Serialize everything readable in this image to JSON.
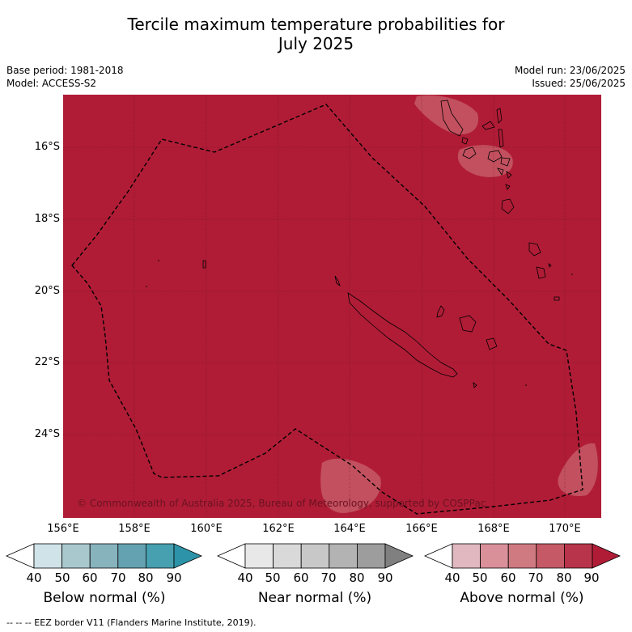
{
  "title_line1": "Tercile maximum temperature probabilities for",
  "title_line2": "July 2025",
  "base_period": "Base period: 1981-2018",
  "model": "Model: ACCESS-S2",
  "model_run": "Model run: 23/06/2025",
  "issued": "Issued: 25/06/2025",
  "latitudes": [
    "16°S",
    "18°S",
    "20°S",
    "22°S",
    "24°S"
  ],
  "longitudes": [
    "156°E",
    "158°E",
    "160°E",
    "162°E",
    "164°E",
    "166°E",
    "168°E",
    "170°E"
  ],
  "copyright": "© Commonwealth of Australia 2025, Bureau of Meteorology, supported by COSPPac",
  "legends": [
    {
      "name": "Below normal (%)",
      "colors": [
        "#cfe3e8",
        "#a8c8ce",
        "#87b3bd",
        "#65a2b1",
        "#46a0b0",
        "#2d93a8"
      ]
    },
    {
      "name": "Near normal (%)",
      "colors": [
        "#e8e8e8",
        "#d9d9d9",
        "#c8c8c8",
        "#b3b3b3",
        "#9d9d9d",
        "#808080"
      ]
    },
    {
      "name": "Above normal (%)",
      "colors": [
        "#e1b8bf",
        "#d99099",
        "#cf7980",
        "#c55966",
        "#b8344a",
        "#b01c36"
      ]
    }
  ],
  "ticks": [
    "40",
    "50",
    "60",
    "70",
    "80",
    "90"
  ],
  "footnote": "--  --  -- EEZ border V11 (Flanders Marine Institute, 2019).",
  "map_color": "#b01c36"
}
